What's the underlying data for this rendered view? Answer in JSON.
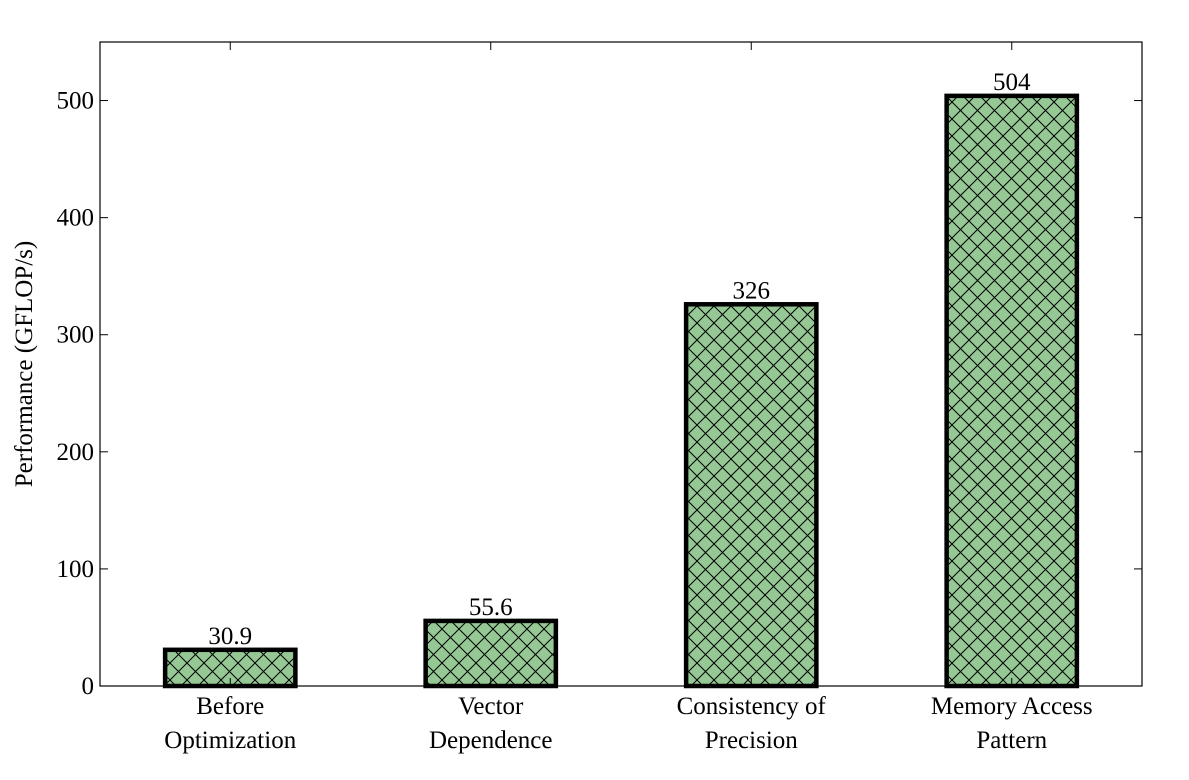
{
  "chart_data": {
    "type": "bar",
    "title": "",
    "xlabel": "",
    "ylabel": "Performance (GFLOP/s)",
    "categories": [
      [
        "Before",
        "Optimization"
      ],
      [
        "Vector",
        "Dependence"
      ],
      [
        "Consistency of",
        "Precision"
      ],
      [
        "Memory Access",
        "Pattern"
      ]
    ],
    "values": [
      30.9,
      55.6,
      326,
      504
    ],
    "data_labels": [
      "30.9",
      "55.6",
      "326",
      "504"
    ],
    "ylim": [
      0,
      550
    ],
    "yticks": [
      0,
      100,
      200,
      300,
      400,
      500
    ],
    "grid": false,
    "bar_color": "#96c896",
    "hatch": "crosshatch"
  }
}
